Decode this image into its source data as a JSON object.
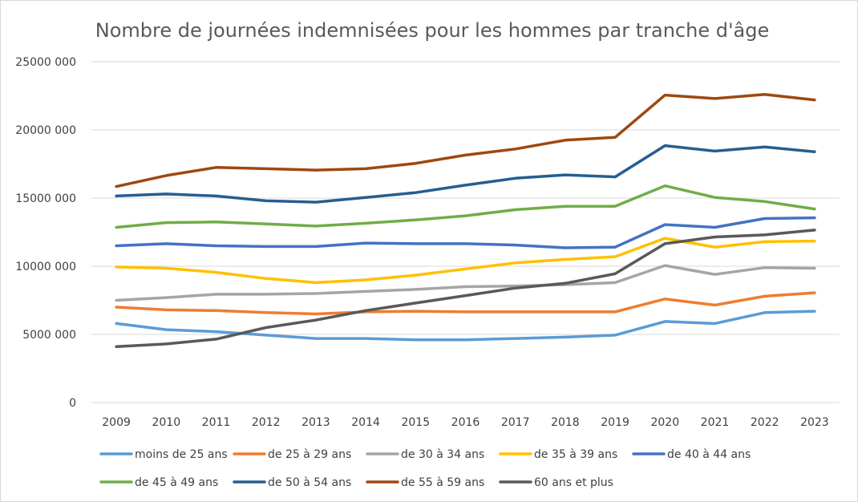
{
  "chart_data": {
    "type": "line",
    "title": "Nombre de journées indemnisées pour les hommes par tranche d'âge",
    "xlabel": "",
    "ylabel": "",
    "x": [
      "2009",
      "2010",
      "2011",
      "2012",
      "2013",
      "2014",
      "2015",
      "2016",
      "2017",
      "2018",
      "2019",
      "2020",
      "2021",
      "2022",
      "2023"
    ],
    "ylim": [
      0,
      25000000
    ],
    "yticks": [
      0,
      5000000,
      10000000,
      15000000,
      20000000,
      25000000
    ],
    "ytick_labels": [
      "0",
      "5000 000",
      "10000 000",
      "15000 000",
      "20000 000",
      "25000 000"
    ],
    "grid": true,
    "legend_position": "bottom",
    "series": [
      {
        "name": "moins de 25 ans",
        "color": "#5b9bd5",
        "values": [
          5800000,
          5350000,
          5200000,
          4950000,
          4700000,
          4700000,
          4600000,
          4600000,
          4700000,
          4800000,
          4950000,
          5950000,
          5800000,
          6600000,
          6700000
        ]
      },
      {
        "name": "de 25 à 29 ans",
        "color": "#ed7d31",
        "values": [
          7000000,
          6800000,
          6750000,
          6600000,
          6500000,
          6650000,
          6700000,
          6650000,
          6650000,
          6650000,
          6650000,
          7600000,
          7150000,
          7800000,
          8050000
        ]
      },
      {
        "name": "de 30 à 34 ans",
        "color": "#a5a5a5",
        "values": [
          7500000,
          7700000,
          7950000,
          7950000,
          8000000,
          8150000,
          8300000,
          8500000,
          8550000,
          8650000,
          8800000,
          10050000,
          9400000,
          9900000,
          9850000
        ]
      },
      {
        "name": "de 35 à 39 ans",
        "color": "#ffc000",
        "values": [
          9950000,
          9850000,
          9550000,
          9100000,
          8800000,
          9000000,
          9350000,
          9800000,
          10250000,
          10500000,
          10700000,
          12050000,
          11400000,
          11800000,
          11850000
        ]
      },
      {
        "name": "de 40 à 44 ans",
        "color": "#4472c4",
        "values": [
          11500000,
          11650000,
          11500000,
          11450000,
          11450000,
          11700000,
          11650000,
          11650000,
          11550000,
          11350000,
          11400000,
          13050000,
          12850000,
          13500000,
          13550000
        ]
      },
      {
        "name": "de 45 à 49 ans",
        "color": "#70ad47",
        "values": [
          12850000,
          13200000,
          13250000,
          13100000,
          12950000,
          13150000,
          13400000,
          13700000,
          14150000,
          14400000,
          14400000,
          15900000,
          15050000,
          14750000,
          14200000
        ]
      },
      {
        "name": "de 50 à 54 ans",
        "color": "#255e91",
        "values": [
          15150000,
          15300000,
          15150000,
          14800000,
          14700000,
          15050000,
          15400000,
          15950000,
          16450000,
          16700000,
          16550000,
          18850000,
          18450000,
          18750000,
          18400000
        ]
      },
      {
        "name": "de 55 à 59 ans",
        "color": "#9e480e",
        "values": [
          15850000,
          16650000,
          17250000,
          17150000,
          17050000,
          17150000,
          17550000,
          18150000,
          18600000,
          19250000,
          19450000,
          22550000,
          22300000,
          22600000,
          22200000
        ]
      },
      {
        "name": "60 ans et plus",
        "color": "#595959",
        "values": [
          4100000,
          4300000,
          4650000,
          5500000,
          6050000,
          6750000,
          7300000,
          7850000,
          8400000,
          8750000,
          9450000,
          11650000,
          12150000,
          12300000,
          12650000
        ]
      }
    ]
  }
}
